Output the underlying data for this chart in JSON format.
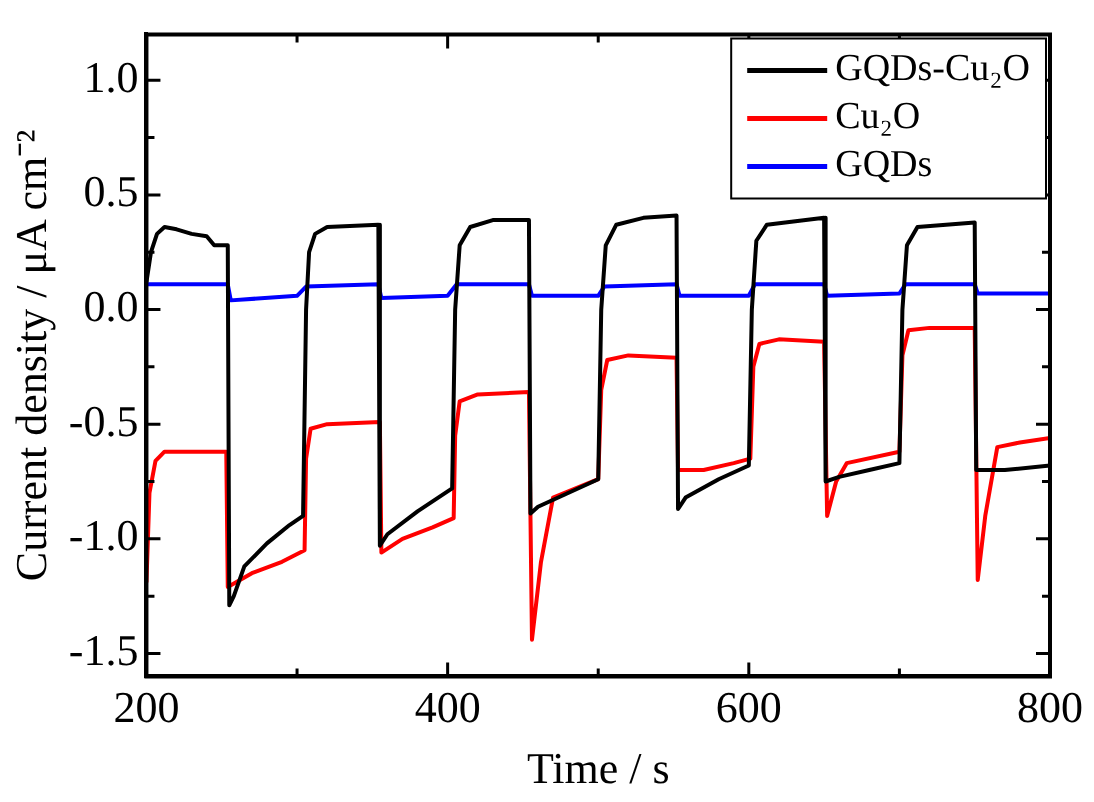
{
  "chart_data": {
    "type": "line",
    "xlabel": "Time / s",
    "ylabel": "Current density / μA cm⁻²",
    "xlim": [
      200,
      800
    ],
    "xticks": [
      200,
      {
        "value": 300,
        "label": null
      },
      400,
      {
        "value": 500,
        "label": null
      },
      600,
      {
        "value": 700,
        "label": null
      },
      800
    ],
    "ylim": [
      -1.6,
      1.2
    ],
    "yticks": [
      {
        "value": -1.5,
        "label": "-1.5"
      },
      {
        "value": -1.25,
        "label": null
      },
      {
        "value": -1.0,
        "label": "-1.0"
      },
      {
        "value": -0.75,
        "label": null
      },
      {
        "value": -0.5,
        "label": "-0.5"
      },
      {
        "value": -0.25,
        "label": null
      },
      {
        "value": 0,
        "label": "0.0"
      },
      {
        "value": 0.25,
        "label": null
      },
      {
        "value": 0.5,
        "label": "0.5"
      },
      {
        "value": 0.75,
        "label": null
      },
      {
        "value": 1.0,
        "label": "1.0"
      }
    ],
    "grid": false,
    "legend": "top right",
    "marker": "none",
    "line_style": "solid",
    "series": [
      {
        "name": "GQDs-Cu₂O",
        "color": "#000000",
        "x": [
          200,
          203,
          207,
          212,
          220,
          230,
          240,
          245,
          254,
          255,
          258,
          265,
          280,
          295,
          304,
          306,
          308,
          312,
          320,
          354,
          355,
          360,
          380,
          403,
          405,
          408,
          415,
          430,
          454,
          455,
          460,
          480,
          500,
          502,
          505,
          512,
          530,
          552,
          553,
          558,
          580,
          600,
          602,
          605,
          612,
          650,
          651,
          660,
          680,
          700,
          702,
          705,
          712,
          750,
          751,
          770,
          800
        ],
        "values": [
          0.12,
          0.25,
          0.33,
          0.36,
          0.35,
          0.33,
          0.32,
          0.28,
          0.28,
          -1.29,
          -1.25,
          -1.12,
          -1.02,
          -0.94,
          -0.9,
          0.0,
          0.25,
          0.33,
          0.36,
          0.37,
          -1.03,
          -0.98,
          -0.88,
          -0.78,
          0.0,
          0.28,
          0.36,
          0.39,
          0.39,
          -0.89,
          -0.86,
          -0.8,
          -0.74,
          0.0,
          0.28,
          0.37,
          0.4,
          0.41,
          -0.87,
          -0.82,
          -0.74,
          -0.68,
          0.0,
          0.3,
          0.37,
          0.4,
          -0.75,
          -0.73,
          -0.7,
          -0.67,
          0.0,
          0.28,
          0.36,
          0.38,
          -0.7,
          -0.7,
          -0.68
        ]
      },
      {
        "name": "Cu₂O",
        "color": "#ff0000",
        "x": [
          200,
          202,
          206,
          212,
          253,
          254,
          270,
          290,
          305,
          306,
          309,
          320,
          355,
          356,
          370,
          390,
          404,
          405,
          408,
          420,
          454,
          456,
          462,
          470,
          485,
          500,
          502,
          506,
          520,
          552,
          553,
          570,
          590,
          601,
          603,
          607,
          620,
          650,
          652,
          658,
          665,
          700,
          702,
          706,
          720,
          750,
          752,
          757,
          765,
          780,
          800
        ],
        "values": [
          -1.19,
          -0.8,
          -0.66,
          -0.62,
          -0.62,
          -1.21,
          -1.15,
          -1.1,
          -1.05,
          -0.65,
          -0.52,
          -0.5,
          -0.49,
          -1.06,
          -1.0,
          -0.95,
          -0.91,
          -0.55,
          -0.4,
          -0.37,
          -0.36,
          -1.44,
          -1.1,
          -0.82,
          -0.78,
          -0.74,
          -0.35,
          -0.22,
          -0.2,
          -0.21,
          -0.7,
          -0.7,
          -0.67,
          -0.65,
          -0.25,
          -0.15,
          -0.13,
          -0.14,
          -0.9,
          -0.75,
          -0.67,
          -0.62,
          -0.2,
          -0.09,
          -0.08,
          -0.08,
          -1.18,
          -0.9,
          -0.6,
          -0.58,
          -0.56
        ]
      },
      {
        "name": "GQDs",
        "color": "#0000ff",
        "x": [
          200,
          254,
          256,
          300,
          306,
          354,
          356,
          400,
          406,
          454,
          456,
          500,
          504,
          552,
          554,
          600,
          604,
          650,
          652,
          700,
          704,
          750,
          752,
          800
        ],
        "values": [
          0.11,
          0.11,
          0.04,
          0.06,
          0.1,
          0.11,
          0.05,
          0.06,
          0.11,
          0.11,
          0.06,
          0.06,
          0.1,
          0.11,
          0.06,
          0.06,
          0.11,
          0.11,
          0.06,
          0.07,
          0.11,
          0.11,
          0.07,
          0.07
        ]
      }
    ]
  }
}
